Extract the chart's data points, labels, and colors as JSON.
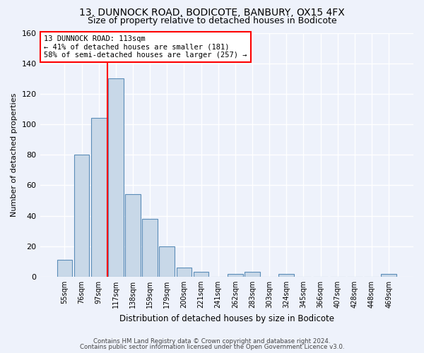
{
  "title_line1": "13, DUNNOCK ROAD, BODICOTE, BANBURY, OX15 4FX",
  "title_line2": "Size of property relative to detached houses in Bodicote",
  "xlabel": "Distribution of detached houses by size in Bodicote",
  "ylabel": "Number of detached properties",
  "bar_color": "#c8d8e8",
  "bar_edge_color": "#5b8db8",
  "categories": [
    "55sqm",
    "76sqm",
    "97sqm",
    "117sqm",
    "138sqm",
    "159sqm",
    "179sqm",
    "200sqm",
    "221sqm",
    "241sqm",
    "262sqm",
    "283sqm",
    "303sqm",
    "324sqm",
    "345sqm",
    "366sqm",
    "407sqm",
    "428sqm",
    "448sqm",
    "469sqm"
  ],
  "values": [
    11,
    80,
    104,
    130,
    54,
    38,
    20,
    6,
    3,
    0,
    2,
    3,
    0,
    2,
    0,
    0,
    0,
    0,
    0,
    2
  ],
  "ylim": [
    0,
    160
  ],
  "yticks": [
    0,
    20,
    40,
    60,
    80,
    100,
    120,
    140,
    160
  ],
  "annotation_text": "13 DUNNOCK ROAD: 113sqm\n← 41% of detached houses are smaller (181)\n58% of semi-detached houses are larger (257) →",
  "annotation_box_color": "white",
  "annotation_box_edge_color": "red",
  "vline_color": "red",
  "footer_line1": "Contains HM Land Registry data © Crown copyright and database right 2024.",
  "footer_line2": "Contains public sector information licensed under the Open Government Licence v3.0.",
  "bg_color": "#eef2fb",
  "grid_color": "#ffffff",
  "title1_fontsize": 10,
  "title2_fontsize": 9,
  "bar_width": 0.9
}
